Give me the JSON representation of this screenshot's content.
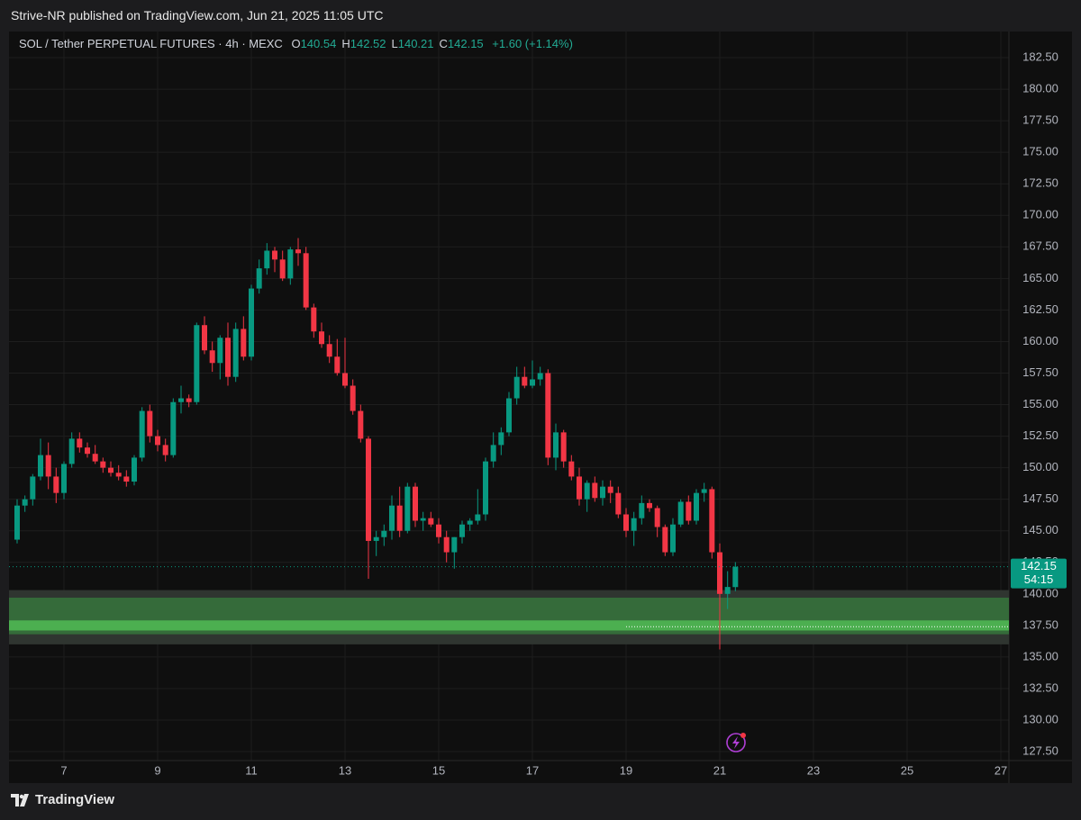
{
  "chart_data": {
    "type": "candlestick",
    "published": "Strive-NR published on TradingView.com, Jun 21, 2025 11:05 UTC",
    "symbol": "SOL / Tether PERPETUAL FUTURES · 4h · MEXC",
    "ohlc_legend": [
      {
        "label": "O",
        "value": 140.54
      },
      {
        "label": "H",
        "value": 142.52
      },
      {
        "label": "L",
        "value": 140.21
      },
      {
        "label": "C",
        "value": 142.15
      }
    ],
    "change": "+1.60 (+1.14%)",
    "brand": "TradingView",
    "up_color": "#089981",
    "down_color": "#f23645",
    "x": [
      6,
      6.167,
      6.333,
      6.5,
      6.667,
      6.833,
      7,
      7.167,
      7.333,
      7.5,
      7.667,
      7.833,
      8,
      8.167,
      8.333,
      8.5,
      8.667,
      8.833,
      9,
      9.167,
      9.333,
      9.5,
      9.667,
      9.833,
      10,
      10.167,
      10.333,
      10.5,
      10.667,
      10.833,
      11,
      11.167,
      11.333,
      11.5,
      11.667,
      11.833,
      12,
      12.167,
      12.333,
      12.5,
      12.667,
      12.833,
      13,
      13.167,
      13.333,
      13.5,
      13.667,
      13.833,
      14,
      14.167,
      14.333,
      14.5,
      14.667,
      14.833,
      15,
      15.167,
      15.333,
      15.5,
      15.667,
      15.833,
      16,
      16.167,
      16.333,
      16.5,
      16.667,
      16.833,
      17,
      17.167,
      17.333,
      17.5,
      17.667,
      17.833,
      18,
      18.167,
      18.333,
      18.5,
      18.667,
      18.833,
      19,
      19.167,
      19.333,
      19.5,
      19.667,
      19.833,
      20,
      20.167,
      20.333,
      20.5,
      20.667,
      20.833,
      21,
      21.167,
      21.333
    ],
    "open": [
      144.3,
      147.0,
      147.5,
      149.3,
      151.0,
      149.3,
      148.0,
      150.3,
      152.3,
      151.6,
      151.1,
      150.5,
      150.0,
      149.6,
      149.3,
      148.9,
      150.8,
      154.5,
      152.5,
      151.8,
      151.0,
      155.2,
      155.5,
      155.2,
      161.3,
      159.3,
      158.3,
      160.3,
      157.2,
      161.0,
      158.8,
      164.2,
      165.8,
      167.2,
      166.5,
      165.0,
      167.3,
      167.0,
      162.7,
      160.8,
      159.8,
      158.8,
      157.5,
      156.5,
      154.5,
      152.3,
      144.2,
      144.5,
      145.0,
      147.0,
      145.0,
      148.5,
      145.8,
      146.0,
      145.5,
      144.5,
      143.3,
      144.5,
      145.5,
      145.8,
      146.3,
      150.5,
      151.8,
      152.8,
      155.5,
      157.2,
      156.5,
      157.0,
      157.5,
      150.8,
      152.8,
      150.5,
      149.3,
      147.5,
      148.8,
      147.6,
      148.5,
      148.0,
      146.3,
      145.0,
      146.0,
      147.2,
      146.8,
      145.3,
      143.3,
      145.5,
      147.3,
      145.8,
      148.0,
      148.3,
      143.3,
      140.0,
      140.54
    ],
    "high": [
      147.5,
      147.8,
      149.5,
      152.3,
      152.0,
      150.0,
      150.5,
      152.8,
      152.8,
      152.0,
      151.8,
      150.8,
      150.5,
      150.2,
      149.8,
      151.0,
      154.8,
      155.0,
      153.0,
      152.3,
      155.5,
      156.5,
      155.8,
      161.5,
      162.0,
      160.0,
      160.5,
      161.5,
      161.5,
      162.0,
      164.5,
      166.5,
      167.8,
      167.5,
      167.2,
      167.5,
      168.2,
      167.5,
      163.0,
      161.5,
      160.5,
      160.2,
      160.3,
      157.0,
      155.0,
      152.5,
      145.0,
      145.5,
      147.8,
      148.5,
      148.8,
      148.8,
      146.5,
      146.5,
      146.0,
      145.0,
      144.5,
      145.8,
      146.0,
      148.3,
      150.8,
      152.8,
      153.2,
      156.0,
      158.0,
      158.0,
      158.5,
      158.0,
      157.8,
      153.5,
      153.0,
      151.0,
      150.0,
      149.0,
      149.3,
      149.0,
      149.0,
      148.5,
      146.8,
      146.5,
      147.8,
      147.5,
      147.0,
      145.5,
      146.0,
      147.5,
      147.8,
      148.3,
      148.8,
      148.5,
      144.0,
      141.8,
      142.52
    ],
    "low": [
      144.0,
      146.5,
      147.0,
      149.0,
      148.3,
      147.2,
      147.5,
      150.0,
      151.2,
      150.8,
      150.3,
      149.6,
      149.3,
      149.0,
      148.5,
      148.6,
      150.5,
      152.0,
      151.3,
      150.5,
      150.8,
      154.3,
      154.8,
      155.0,
      159.0,
      157.6,
      157.0,
      156.5,
      156.8,
      158.5,
      158.5,
      163.8,
      165.3,
      165.5,
      164.8,
      164.5,
      166.0,
      162.5,
      160.3,
      159.5,
      158.3,
      157.3,
      156.3,
      154.2,
      152.0,
      141.2,
      143.0,
      143.8,
      144.3,
      144.5,
      144.8,
      145.3,
      145.0,
      145.3,
      144.0,
      142.5,
      142.0,
      144.0,
      145.0,
      145.5,
      145.8,
      150.0,
      151.0,
      152.5,
      155.0,
      156.3,
      156.3,
      156.5,
      150.2,
      149.8,
      150.0,
      149.0,
      147.0,
      146.5,
      147.3,
      147.0,
      147.2,
      146.0,
      144.5,
      143.8,
      145.5,
      146.5,
      144.5,
      143.0,
      143.0,
      145.3,
      145.5,
      145.5,
      147.3,
      142.8,
      135.6,
      138.8,
      140.21
    ],
    "close": [
      147.0,
      147.5,
      149.3,
      151.0,
      149.3,
      148.0,
      150.3,
      152.3,
      151.6,
      151.1,
      150.5,
      150.0,
      149.6,
      149.3,
      148.9,
      150.8,
      154.5,
      152.5,
      151.8,
      151.0,
      155.2,
      155.5,
      155.2,
      161.3,
      159.3,
      158.3,
      160.3,
      157.2,
      161.0,
      158.8,
      164.2,
      165.8,
      167.2,
      166.5,
      165.0,
      167.3,
      167.0,
      162.7,
      160.8,
      159.8,
      158.8,
      157.5,
      156.5,
      154.5,
      152.3,
      144.2,
      144.5,
      145.0,
      147.0,
      145.0,
      148.5,
      145.8,
      146.0,
      145.5,
      144.5,
      143.3,
      144.5,
      145.5,
      145.8,
      146.3,
      150.5,
      151.8,
      152.8,
      155.5,
      157.2,
      156.5,
      157.0,
      157.5,
      150.8,
      152.8,
      150.5,
      149.3,
      147.5,
      148.8,
      147.6,
      148.5,
      148.0,
      146.3,
      145.0,
      146.0,
      147.2,
      146.8,
      145.3,
      143.3,
      145.5,
      147.3,
      145.8,
      148.0,
      148.3,
      143.3,
      140.0,
      140.55,
      142.15
    ],
    "xlim": [
      5.827,
      27.173
    ],
    "xticks": [
      7,
      9,
      11,
      13,
      15,
      17,
      19,
      21,
      23,
      25,
      27
    ],
    "ylim": [
      126.79,
      184.57
    ],
    "yticks": [
      {
        "value": 127.5,
        "label": "127.50"
      },
      {
        "value": 130,
        "label": "130.00"
      },
      {
        "value": 132.5,
        "label": "132.50"
      },
      {
        "value": 135,
        "label": "135.00"
      },
      {
        "value": 137.5,
        "label": "137.50"
      },
      {
        "value": 140,
        "label": "140.00"
      },
      {
        "value": 142.5,
        "label": "142.50"
      },
      {
        "value": 145,
        "label": "145.00"
      },
      {
        "value": 147.5,
        "label": "147.50"
      },
      {
        "value": 150,
        "label": "150.00"
      },
      {
        "value": 152.5,
        "label": "152.50"
      },
      {
        "value": 155,
        "label": "155.00"
      },
      {
        "value": 157.5,
        "label": "157.50"
      },
      {
        "value": 160,
        "label": "160.00"
      },
      {
        "value": 162.5,
        "label": "162.50"
      },
      {
        "value": 165,
        "label": "165.00"
      },
      {
        "value": 167.5,
        "label": "167.50"
      },
      {
        "value": 170,
        "label": "170.00"
      },
      {
        "value": 172.5,
        "label": "172.50"
      },
      {
        "value": 175,
        "label": "175.00"
      },
      {
        "value": 177.5,
        "label": "177.50"
      },
      {
        "value": 180,
        "label": "180.00"
      },
      {
        "value": 182.5,
        "label": "182.50"
      }
    ],
    "grid": true,
    "support_zone": {
      "outer": [
        136.0,
        140.3
      ],
      "inner": [
        136.8,
        139.7
      ],
      "core": [
        137.1,
        137.9
      ]
    },
    "level": {
      "value": 137.4,
      "from": 19
    },
    "last_price": {
      "value": 142.15,
      "countdown": "54:15"
    }
  }
}
